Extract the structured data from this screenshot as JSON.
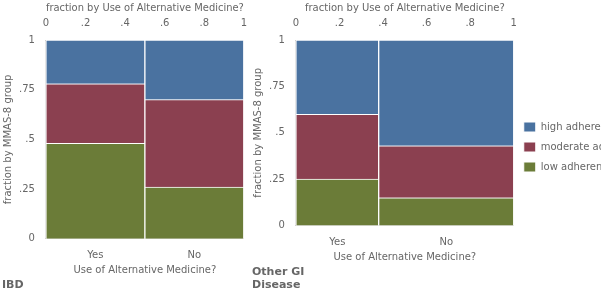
{
  "chart_data": [
    {
      "type": "mosaic",
      "title": "IBD",
      "categories": [
        "Yes",
        "No"
      ],
      "widths": [
        0.5,
        0.5
      ],
      "series": [
        {
          "name": "low adherence",
          "color": "#6b7c38",
          "values": [
            0.48,
            0.26
          ]
        },
        {
          "name": "moderate adherence",
          "color": "#8b4050",
          "values": [
            0.3,
            0.44
          ]
        },
        {
          "name": "high adherence",
          "color": "#4a72a0",
          "values": [
            0.22,
            0.3
          ]
        }
      ],
      "stacked": true,
      "xlabel": "Use of Alternative Medicine?",
      "ylabel": "fraction by MMAS-8 group",
      "x2label": "fraction by Use of Alternative Medicine?",
      "xlim": [
        0,
        1
      ],
      "x2lim": [
        0,
        1
      ],
      "x2ticks": [
        0,
        {
          "value": 0.2,
          "label": ".2"
        },
        {
          "value": 0.4,
          "label": ".4"
        },
        {
          "value": 0.6,
          "label": ".6"
        },
        {
          "value": 0.8,
          "label": ".8"
        },
        1
      ],
      "ylim": [
        0,
        1
      ],
      "yticks": [
        0,
        {
          "value": 0.25,
          "label": ".25"
        },
        {
          "value": 0.5,
          "label": ".5"
        },
        {
          "value": 0.75,
          "label": ".75"
        },
        1
      ]
    },
    {
      "type": "mosaic",
      "title": "Other GI\nDisease",
      "categories": [
        "Yes",
        "No"
      ],
      "widths": [
        0.38,
        0.62
      ],
      "series": [
        {
          "name": "low adherence",
          "color": "#6b7c38",
          "values": [
            0.25,
            0.15
          ]
        },
        {
          "name": "moderate adherence",
          "color": "#8b4050",
          "values": [
            0.35,
            0.28
          ]
        },
        {
          "name": "high adherence",
          "color": "#4a72a0",
          "values": [
            0.4,
            0.57
          ]
        }
      ],
      "stacked": true,
      "legend": "right",
      "xlabel": "Use of Alternative Medicine?",
      "ylabel": "fraction by MMAS-8 group",
      "x2label": "fraction by Use of Alternative Medicine?",
      "xlim": [
        0,
        1
      ],
      "x2lim": [
        0,
        1
      ],
      "x2ticks": [
        0,
        {
          "value": 0.2,
          "label": ".2"
        },
        {
          "value": 0.4,
          "label": ".4"
        },
        {
          "value": 0.6,
          "label": ".6"
        },
        {
          "value": 0.8,
          "label": ".8"
        },
        1
      ],
      "ylim": [
        0,
        1
      ],
      "yticks": [
        0,
        {
          "value": 0.25,
          "label": ".25"
        },
        {
          "value": 0.5,
          "label": ".5"
        },
        {
          "value": 0.75,
          "label": ".75"
        },
        1
      ]
    }
  ]
}
